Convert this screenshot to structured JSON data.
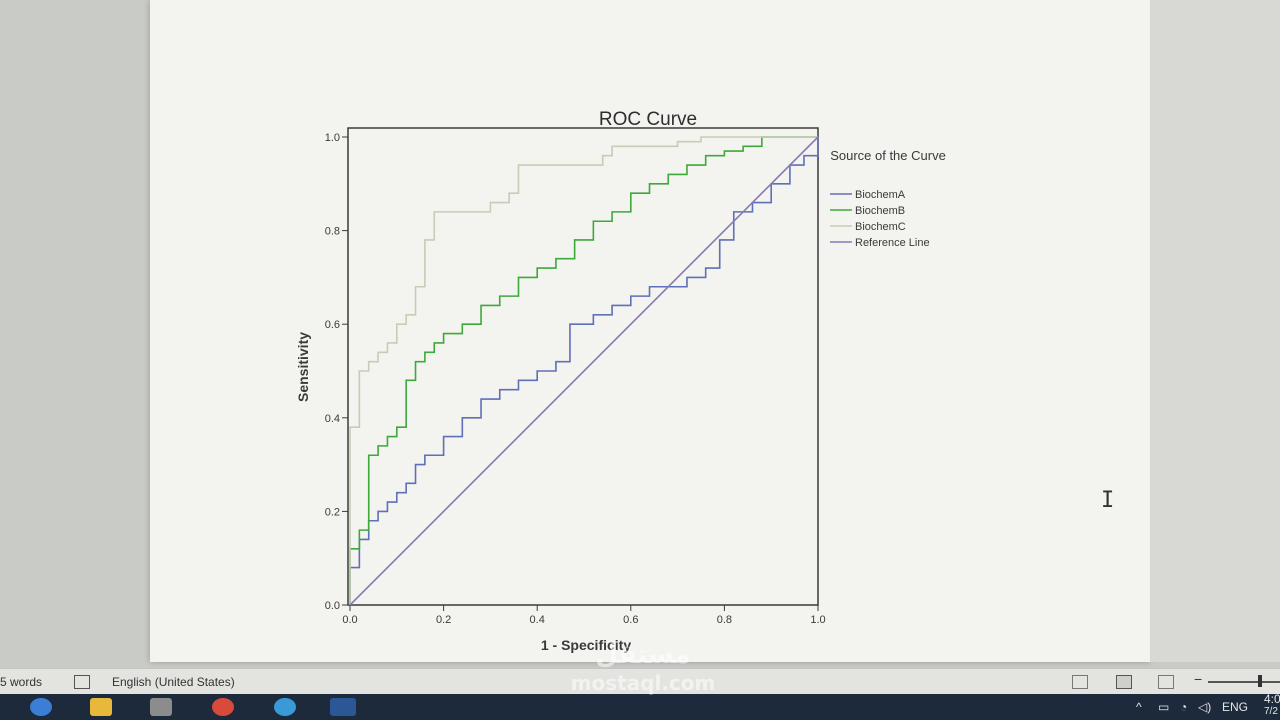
{
  "chart_data": {
    "type": "line",
    "title": "ROC Curve",
    "xlabel": "1 - Specificity",
    "ylabel": "Sensitivity",
    "xlim": [
      0,
      1
    ],
    "ylim": [
      0,
      1
    ],
    "xticks": [
      "0.0",
      "0.2",
      "0.4",
      "0.6",
      "0.8",
      "1.0"
    ],
    "yticks": [
      "0.0",
      "0.2",
      "0.4",
      "0.6",
      "0.8",
      "1.0"
    ],
    "legend_title": "Source of the Curve",
    "legend_position": "right",
    "grid": false,
    "series": [
      {
        "name": "BiochemA",
        "color": "#5f6fb8",
        "x": [
          0,
          0,
          0.02,
          0.04,
          0.06,
          0.08,
          0.1,
          0.12,
          0.14,
          0.16,
          0.2,
          0.24,
          0.28,
          0.32,
          0.36,
          0.4,
          0.44,
          0.47,
          0.52,
          0.56,
          0.6,
          0.64,
          0.68,
          0.72,
          0.76,
          0.79,
          0.82,
          0.86,
          0.9,
          0.94,
          0.97,
          1.0
        ],
        "y": [
          0,
          0.08,
          0.14,
          0.18,
          0.2,
          0.22,
          0.24,
          0.26,
          0.3,
          0.32,
          0.36,
          0.4,
          0.44,
          0.46,
          0.48,
          0.5,
          0.52,
          0.6,
          0.62,
          0.64,
          0.66,
          0.68,
          0.68,
          0.7,
          0.72,
          0.78,
          0.84,
          0.86,
          0.9,
          0.94,
          0.96,
          1.0
        ]
      },
      {
        "name": "BiochemB",
        "color": "#3fa83b",
        "x": [
          0,
          0,
          0.02,
          0.04,
          0.06,
          0.08,
          0.1,
          0.12,
          0.14,
          0.16,
          0.18,
          0.2,
          0.24,
          0.28,
          0.32,
          0.36,
          0.4,
          0.44,
          0.48,
          0.52,
          0.56,
          0.6,
          0.64,
          0.68,
          0.72,
          0.76,
          0.8,
          0.84,
          0.88,
          0.92,
          1.0
        ],
        "y": [
          0,
          0.12,
          0.16,
          0.32,
          0.34,
          0.36,
          0.38,
          0.48,
          0.52,
          0.54,
          0.56,
          0.58,
          0.6,
          0.64,
          0.66,
          0.7,
          0.72,
          0.74,
          0.78,
          0.82,
          0.84,
          0.88,
          0.9,
          0.92,
          0.94,
          0.96,
          0.97,
          0.98,
          1.0,
          1.0,
          1.0
        ]
      },
      {
        "name": "BiochemC",
        "color": "#c9ccb4",
        "x": [
          0,
          0,
          0.02,
          0.04,
          0.06,
          0.08,
          0.1,
          0.12,
          0.14,
          0.16,
          0.18,
          0.24,
          0.3,
          0.34,
          0.36,
          0.4,
          0.5,
          0.54,
          0.56,
          0.6,
          0.7,
          0.75,
          0.8,
          0.9,
          1.0
        ],
        "y": [
          0,
          0.38,
          0.5,
          0.52,
          0.54,
          0.56,
          0.6,
          0.62,
          0.68,
          0.78,
          0.84,
          0.84,
          0.86,
          0.88,
          0.94,
          0.94,
          0.94,
          0.96,
          0.98,
          0.98,
          0.99,
          1.0,
          1.0,
          1.0,
          1.0
        ]
      },
      {
        "name": "Reference Line",
        "color": "#8a78b8",
        "x": [
          0,
          1.0
        ],
        "y": [
          0,
          1.0
        ]
      }
    ]
  },
  "status_bar": {
    "word_count": "5 words",
    "language": "English (United States)"
  },
  "taskbar": {
    "language": "ENG",
    "time": "4:0",
    "date": "7/2"
  },
  "watermark": {
    "arabic": "مستقل",
    "latin": "mostaql.com"
  },
  "colors": {
    "axis": "#3a3a3a",
    "text": "#333333"
  }
}
